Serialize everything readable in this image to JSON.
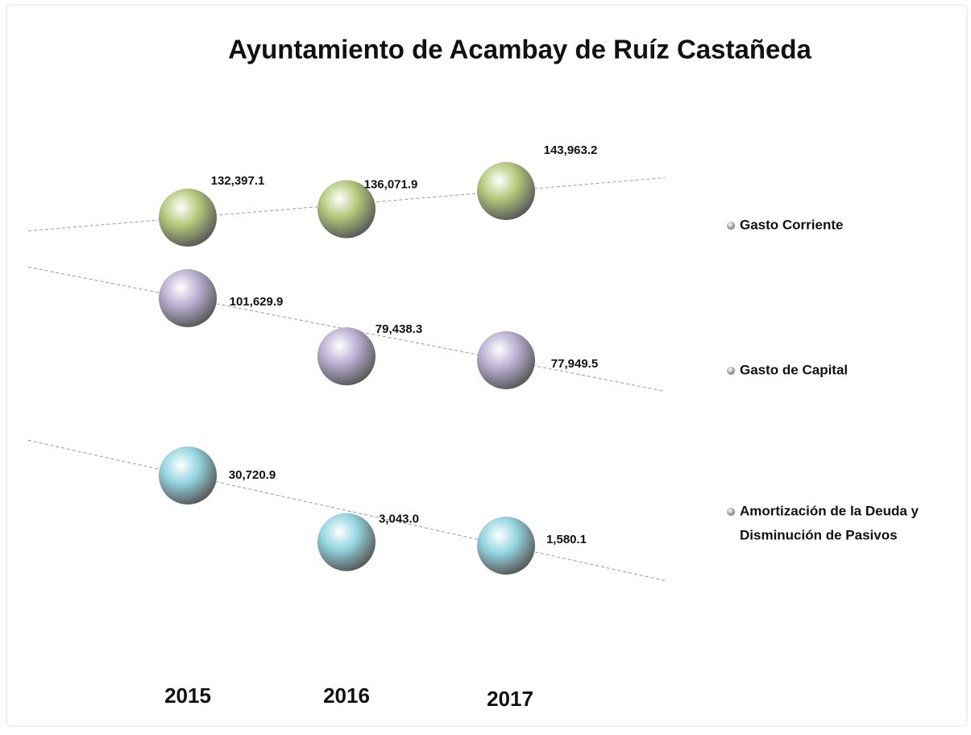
{
  "chart_data": {
    "type": "bubble",
    "title": "Ayuntamiento de Acambay de Ruíz Castañeda",
    "categories": [
      "2015",
      "2016",
      "2017"
    ],
    "series": [
      {
        "name": "Gasto Corriente",
        "color": "#b5c97a",
        "values": [
          132397.1,
          136071.9,
          143963.2
        ],
        "value_labels": [
          "132,397.1",
          "136,071.9",
          "143,963.2"
        ]
      },
      {
        "name": "Gasto de Capital",
        "color": "#bbb0d2",
        "values": [
          101629.9,
          79438.3,
          77949.5
        ],
        "value_labels": [
          "101,629.9",
          "79,438.3",
          "77,949.5"
        ]
      },
      {
        "name": [
          "Amortización de la Deuda y",
          "Disminución de Pasivos"
        ],
        "color": "#92d5e0",
        "values": [
          30720.9,
          3043.0,
          1580.1
        ],
        "value_labels": [
          "30,720.9",
          "3,043.0",
          "1,580.1"
        ]
      }
    ],
    "legend": "right"
  }
}
